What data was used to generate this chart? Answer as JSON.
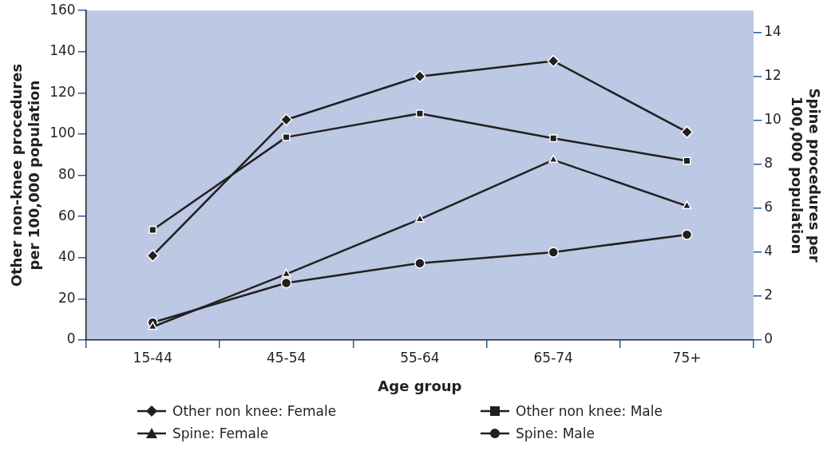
{
  "chart_data": {
    "type": "line",
    "xlabel": "Age group",
    "ylabel": "Other non-knee procedures\nper 100,000 population",
    "y2label": "Spine procedures per\n100,000 population",
    "categories": [
      "15-44",
      "45-54",
      "55-64",
      "65-74",
      "75+"
    ],
    "ylim": [
      0,
      160
    ],
    "yticks": [
      0,
      20,
      40,
      60,
      80,
      100,
      120,
      140,
      160
    ],
    "y2lim": [
      0,
      15
    ],
    "y2ticks": [
      0,
      2,
      4,
      6,
      8,
      10,
      12,
      14
    ],
    "legend": "bottom",
    "line_style": "solid",
    "series": [
      {
        "name": "Other non knee: Female",
        "color": "#231f20",
        "marker": "diamond",
        "values": [
          41,
          107,
          128,
          135.5,
          101
        ]
      },
      {
        "name": "Other non knee: Male",
        "color": "#231f20",
        "marker": "square",
        "values": [
          53.5,
          98.5,
          110,
          98,
          87
        ]
      },
      {
        "name": "Spine: Female",
        "color": "#231f20",
        "marker": "triangle",
        "axis": "y2",
        "values": [
          0.6,
          3,
          5.5,
          8.2,
          6.1
        ]
      },
      {
        "name": "Spine: Male",
        "color": "#231f20",
        "marker": "circle",
        "axis": "y2",
        "values": [
          0.8,
          2.6,
          3.5,
          4,
          4.8
        ]
      }
    ]
  }
}
